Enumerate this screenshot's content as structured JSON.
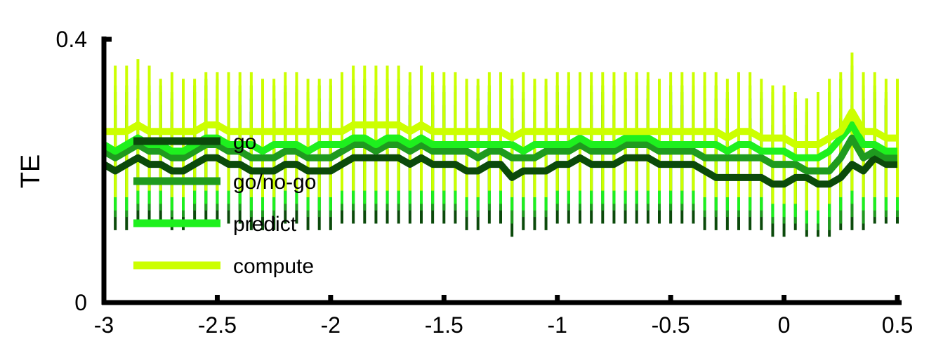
{
  "chart_data": {
    "type": "line",
    "title": "",
    "xlabel": "",
    "ylabel": "TE",
    "xlim": [
      -3,
      0.5
    ],
    "ylim": [
      0,
      0.4
    ],
    "x_ticks": [
      "-3",
      "-2.5",
      "-2",
      "-1.5",
      "-1",
      "-0.5",
      "0",
      "0.5"
    ],
    "y_ticks": [
      "0",
      "0.4"
    ],
    "grid": false,
    "legend_position": "center-left",
    "x": [
      -3.0,
      -2.95,
      -2.9,
      -2.85,
      -2.8,
      -2.75,
      -2.7,
      -2.65,
      -2.6,
      -2.55,
      -2.5,
      -2.45,
      -2.4,
      -2.35,
      -2.3,
      -2.25,
      -2.2,
      -2.15,
      -2.1,
      -2.05,
      -2.0,
      -1.95,
      -1.9,
      -1.85,
      -1.8,
      -1.75,
      -1.7,
      -1.65,
      -1.6,
      -1.55,
      -1.5,
      -1.45,
      -1.4,
      -1.35,
      -1.3,
      -1.25,
      -1.2,
      -1.15,
      -1.1,
      -1.05,
      -1.0,
      -0.95,
      -0.9,
      -0.85,
      -0.8,
      -0.75,
      -0.7,
      -0.65,
      -0.6,
      -0.55,
      -0.5,
      -0.45,
      -0.4,
      -0.35,
      -0.3,
      -0.25,
      -0.2,
      -0.15,
      -0.1,
      -0.05,
      0.0,
      0.05,
      0.1,
      0.15,
      0.2,
      0.25,
      0.3,
      0.35,
      0.4,
      0.45,
      0.5
    ],
    "series": [
      {
        "name": "go",
        "color": "#0b4a0b",
        "values": [
          0.21,
          0.2,
          0.21,
          0.22,
          0.21,
          0.21,
          0.2,
          0.2,
          0.21,
          0.22,
          0.22,
          0.21,
          0.21,
          0.2,
          0.2,
          0.2,
          0.21,
          0.21,
          0.2,
          0.2,
          0.2,
          0.21,
          0.22,
          0.22,
          0.22,
          0.22,
          0.22,
          0.21,
          0.22,
          0.21,
          0.21,
          0.21,
          0.2,
          0.2,
          0.21,
          0.21,
          0.19,
          0.2,
          0.2,
          0.2,
          0.21,
          0.21,
          0.22,
          0.21,
          0.21,
          0.21,
          0.22,
          0.22,
          0.22,
          0.21,
          0.21,
          0.21,
          0.21,
          0.2,
          0.19,
          0.19,
          0.19,
          0.19,
          0.19,
          0.18,
          0.18,
          0.19,
          0.19,
          0.18,
          0.18,
          0.19,
          0.21,
          0.2,
          0.22,
          0.21,
          0.21
        ],
        "err_lower": [
          0.11,
          0.11,
          0.11,
          0.12,
          0.12,
          0.12,
          0.11,
          0.11,
          0.12,
          0.12,
          0.12,
          0.12,
          0.12,
          0.11,
          0.11,
          0.11,
          0.12,
          0.12,
          0.11,
          0.11,
          0.11,
          0.12,
          0.12,
          0.12,
          0.12,
          0.12,
          0.12,
          0.12,
          0.12,
          0.12,
          0.12,
          0.12,
          0.11,
          0.11,
          0.12,
          0.12,
          0.1,
          0.11,
          0.11,
          0.11,
          0.12,
          0.12,
          0.12,
          0.12,
          0.12,
          0.12,
          0.12,
          0.12,
          0.12,
          0.12,
          0.12,
          0.12,
          0.12,
          0.11,
          0.11,
          0.11,
          0.11,
          0.11,
          0.11,
          0.1,
          0.1,
          0.11,
          0.1,
          0.1,
          0.1,
          0.11,
          0.11,
          0.11,
          0.12,
          0.12,
          0.12
        ],
        "err_upper": [
          0.3,
          0.3,
          0.3,
          0.31,
          0.3,
          0.3,
          0.29,
          0.29,
          0.3,
          0.31,
          0.31,
          0.3,
          0.3,
          0.29,
          0.29,
          0.29,
          0.3,
          0.3,
          0.29,
          0.29,
          0.29,
          0.3,
          0.31,
          0.31,
          0.31,
          0.31,
          0.31,
          0.3,
          0.31,
          0.3,
          0.3,
          0.3,
          0.29,
          0.29,
          0.3,
          0.3,
          0.28,
          0.29,
          0.29,
          0.29,
          0.3,
          0.3,
          0.31,
          0.3,
          0.3,
          0.3,
          0.31,
          0.31,
          0.31,
          0.3,
          0.3,
          0.3,
          0.3,
          0.29,
          0.28,
          0.28,
          0.28,
          0.28,
          0.28,
          0.27,
          0.27,
          0.28,
          0.27,
          0.26,
          0.26,
          0.28,
          0.3,
          0.29,
          0.31,
          0.3,
          0.3
        ]
      },
      {
        "name": "go/no-go",
        "color": "#1f9a1f",
        "values": [
          0.23,
          0.22,
          0.23,
          0.24,
          0.23,
          0.23,
          0.22,
          0.22,
          0.23,
          0.24,
          0.24,
          0.23,
          0.23,
          0.22,
          0.22,
          0.22,
          0.23,
          0.23,
          0.22,
          0.22,
          0.22,
          0.23,
          0.24,
          0.24,
          0.23,
          0.24,
          0.24,
          0.23,
          0.24,
          0.23,
          0.23,
          0.23,
          0.23,
          0.22,
          0.23,
          0.23,
          0.22,
          0.22,
          0.22,
          0.23,
          0.23,
          0.23,
          0.24,
          0.23,
          0.23,
          0.23,
          0.24,
          0.24,
          0.24,
          0.23,
          0.23,
          0.23,
          0.23,
          0.22,
          0.22,
          0.22,
          0.22,
          0.22,
          0.22,
          0.21,
          0.21,
          0.21,
          0.2,
          0.2,
          0.2,
          0.22,
          0.25,
          0.22,
          0.23,
          0.22,
          0.22
        ],
        "err_lower": [
          0.13,
          0.13,
          0.13,
          0.14,
          0.14,
          0.14,
          0.13,
          0.13,
          0.14,
          0.14,
          0.14,
          0.14,
          0.14,
          0.13,
          0.13,
          0.13,
          0.14,
          0.14,
          0.13,
          0.13,
          0.13,
          0.14,
          0.14,
          0.14,
          0.14,
          0.14,
          0.14,
          0.14,
          0.14,
          0.14,
          0.14,
          0.14,
          0.13,
          0.13,
          0.14,
          0.14,
          0.12,
          0.13,
          0.13,
          0.13,
          0.14,
          0.14,
          0.14,
          0.14,
          0.14,
          0.14,
          0.14,
          0.14,
          0.14,
          0.14,
          0.14,
          0.14,
          0.14,
          0.13,
          0.13,
          0.13,
          0.13,
          0.13,
          0.13,
          0.12,
          0.12,
          0.12,
          0.11,
          0.11,
          0.11,
          0.12,
          0.13,
          0.12,
          0.13,
          0.13,
          0.13
        ],
        "err_upper": [
          0.32,
          0.32,
          0.32,
          0.33,
          0.32,
          0.32,
          0.31,
          0.31,
          0.32,
          0.33,
          0.33,
          0.32,
          0.32,
          0.31,
          0.31,
          0.31,
          0.32,
          0.32,
          0.31,
          0.31,
          0.31,
          0.32,
          0.33,
          0.33,
          0.32,
          0.33,
          0.33,
          0.32,
          0.33,
          0.32,
          0.32,
          0.32,
          0.32,
          0.31,
          0.32,
          0.32,
          0.31,
          0.31,
          0.31,
          0.32,
          0.32,
          0.32,
          0.33,
          0.32,
          0.32,
          0.32,
          0.33,
          0.33,
          0.33,
          0.32,
          0.32,
          0.32,
          0.32,
          0.31,
          0.31,
          0.31,
          0.31,
          0.31,
          0.31,
          0.3,
          0.3,
          0.3,
          0.29,
          0.29,
          0.3,
          0.31,
          0.35,
          0.31,
          0.32,
          0.31,
          0.31
        ]
      },
      {
        "name": "predict",
        "color": "#1ef01e",
        "values": [
          0.24,
          0.23,
          0.24,
          0.25,
          0.24,
          0.24,
          0.23,
          0.23,
          0.24,
          0.25,
          0.25,
          0.24,
          0.24,
          0.24,
          0.23,
          0.24,
          0.24,
          0.24,
          0.23,
          0.24,
          0.24,
          0.24,
          0.25,
          0.25,
          0.24,
          0.25,
          0.25,
          0.24,
          0.25,
          0.24,
          0.24,
          0.24,
          0.24,
          0.24,
          0.24,
          0.24,
          0.24,
          0.23,
          0.24,
          0.24,
          0.24,
          0.24,
          0.25,
          0.24,
          0.24,
          0.24,
          0.25,
          0.25,
          0.25,
          0.24,
          0.24,
          0.24,
          0.24,
          0.24,
          0.24,
          0.23,
          0.24,
          0.24,
          0.23,
          0.23,
          0.23,
          0.22,
          0.22,
          0.22,
          0.23,
          0.25,
          0.27,
          0.24,
          0.24,
          0.23,
          0.23
        ],
        "err_lower": [
          0.14,
          0.14,
          0.14,
          0.15,
          0.15,
          0.15,
          0.14,
          0.14,
          0.15,
          0.15,
          0.15,
          0.15,
          0.15,
          0.14,
          0.14,
          0.14,
          0.15,
          0.15,
          0.14,
          0.14,
          0.14,
          0.15,
          0.15,
          0.15,
          0.15,
          0.15,
          0.15,
          0.15,
          0.15,
          0.15,
          0.15,
          0.15,
          0.14,
          0.14,
          0.15,
          0.15,
          0.14,
          0.14,
          0.14,
          0.14,
          0.15,
          0.15,
          0.15,
          0.15,
          0.15,
          0.15,
          0.15,
          0.15,
          0.15,
          0.15,
          0.15,
          0.15,
          0.15,
          0.14,
          0.14,
          0.14,
          0.14,
          0.14,
          0.14,
          0.13,
          0.13,
          0.13,
          0.12,
          0.12,
          0.13,
          0.14,
          0.15,
          0.14,
          0.14,
          0.14,
          0.14
        ],
        "err_upper": [
          0.33,
          0.33,
          0.33,
          0.34,
          0.33,
          0.33,
          0.32,
          0.32,
          0.33,
          0.34,
          0.34,
          0.33,
          0.33,
          0.33,
          0.32,
          0.33,
          0.33,
          0.33,
          0.32,
          0.33,
          0.33,
          0.33,
          0.34,
          0.34,
          0.33,
          0.34,
          0.34,
          0.33,
          0.34,
          0.33,
          0.33,
          0.33,
          0.33,
          0.33,
          0.33,
          0.33,
          0.33,
          0.32,
          0.33,
          0.33,
          0.33,
          0.33,
          0.34,
          0.33,
          0.33,
          0.33,
          0.34,
          0.34,
          0.34,
          0.33,
          0.33,
          0.33,
          0.33,
          0.33,
          0.33,
          0.32,
          0.33,
          0.33,
          0.32,
          0.32,
          0.32,
          0.31,
          0.31,
          0.31,
          0.32,
          0.34,
          0.36,
          0.33,
          0.33,
          0.32,
          0.32
        ]
      },
      {
        "name": "compute",
        "color": "#ccff00",
        "values": [
          0.26,
          0.26,
          0.26,
          0.27,
          0.26,
          0.26,
          0.26,
          0.26,
          0.26,
          0.27,
          0.27,
          0.26,
          0.26,
          0.26,
          0.26,
          0.26,
          0.26,
          0.26,
          0.26,
          0.26,
          0.26,
          0.26,
          0.27,
          0.27,
          0.27,
          0.27,
          0.27,
          0.26,
          0.27,
          0.26,
          0.26,
          0.26,
          0.26,
          0.26,
          0.26,
          0.26,
          0.25,
          0.26,
          0.26,
          0.26,
          0.26,
          0.26,
          0.26,
          0.26,
          0.26,
          0.26,
          0.26,
          0.26,
          0.26,
          0.26,
          0.26,
          0.26,
          0.26,
          0.26,
          0.26,
          0.25,
          0.26,
          0.26,
          0.25,
          0.25,
          0.25,
          0.24,
          0.24,
          0.24,
          0.25,
          0.26,
          0.29,
          0.26,
          0.26,
          0.25,
          0.25
        ],
        "err_lower": [
          0.16,
          0.16,
          0.16,
          0.17,
          0.17,
          0.17,
          0.16,
          0.16,
          0.17,
          0.17,
          0.17,
          0.17,
          0.17,
          0.16,
          0.16,
          0.16,
          0.17,
          0.17,
          0.16,
          0.16,
          0.16,
          0.17,
          0.17,
          0.17,
          0.17,
          0.17,
          0.17,
          0.17,
          0.17,
          0.17,
          0.17,
          0.17,
          0.16,
          0.16,
          0.17,
          0.17,
          0.16,
          0.16,
          0.16,
          0.16,
          0.17,
          0.17,
          0.17,
          0.17,
          0.17,
          0.17,
          0.17,
          0.17,
          0.17,
          0.17,
          0.17,
          0.17,
          0.17,
          0.16,
          0.16,
          0.16,
          0.16,
          0.16,
          0.16,
          0.15,
          0.15,
          0.15,
          0.14,
          0.14,
          0.15,
          0.16,
          0.17,
          0.16,
          0.16,
          0.16,
          0.16
        ],
        "err_upper": [
          0.35,
          0.36,
          0.36,
          0.37,
          0.36,
          0.34,
          0.35,
          0.34,
          0.34,
          0.35,
          0.35,
          0.35,
          0.35,
          0.35,
          0.34,
          0.34,
          0.35,
          0.35,
          0.34,
          0.34,
          0.34,
          0.35,
          0.36,
          0.36,
          0.36,
          0.36,
          0.36,
          0.35,
          0.36,
          0.35,
          0.35,
          0.35,
          0.34,
          0.34,
          0.35,
          0.35,
          0.34,
          0.35,
          0.34,
          0.34,
          0.35,
          0.35,
          0.35,
          0.35,
          0.35,
          0.35,
          0.35,
          0.35,
          0.35,
          0.34,
          0.35,
          0.35,
          0.35,
          0.35,
          0.35,
          0.34,
          0.35,
          0.35,
          0.34,
          0.33,
          0.33,
          0.32,
          0.31,
          0.32,
          0.34,
          0.35,
          0.38,
          0.35,
          0.35,
          0.34,
          0.34
        ]
      }
    ]
  }
}
